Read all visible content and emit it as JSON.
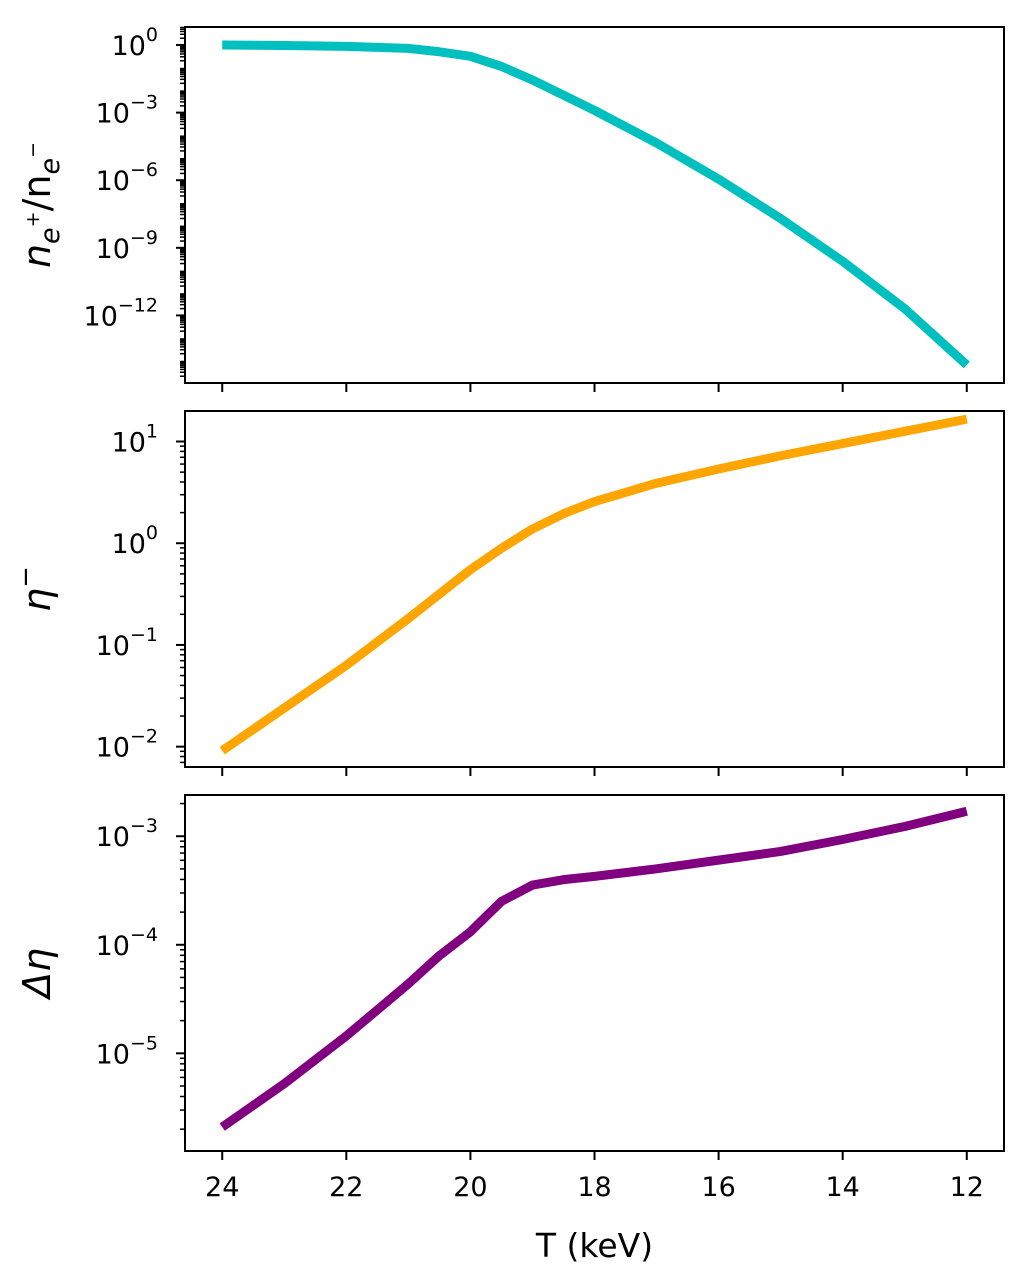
{
  "chart_data": [
    {
      "type": "line",
      "ylabel": "n_{e+}/n_{e−}",
      "yscale": "log",
      "ylim_exp": [
        -15.0,
        0.8
      ],
      "xlim": [
        24.6,
        11.4
      ],
      "x_ticks": [
        24,
        22,
        20,
        18,
        16,
        14,
        12
      ],
      "y_tick_exponents": [
        0,
        -3,
        -6,
        -9,
        -12
      ],
      "show_x_tick_labels": false,
      "line_color": "#00bfbf",
      "series": [
        {
          "x": [
            24,
            23,
            22,
            21,
            20.5,
            20,
            19.5,
            19,
            18,
            17,
            16,
            15,
            14,
            13,
            12
          ],
          "log10_y": [
            0.0,
            -0.02,
            -0.06,
            -0.15,
            -0.3,
            -0.5,
            -0.95,
            -1.55,
            -2.9,
            -4.35,
            -5.95,
            -7.7,
            -9.6,
            -11.7,
            -14.2
          ]
        }
      ]
    },
    {
      "type": "line",
      "ylabel": "η^−",
      "yscale": "log",
      "ylim_exp": [
        -2.2,
        1.3
      ],
      "xlim": [
        24.6,
        11.4
      ],
      "x_ticks": [
        24,
        22,
        20,
        18,
        16,
        14,
        12
      ],
      "y_tick_exponents": [
        1,
        0,
        -1,
        -2
      ],
      "show_x_tick_labels": false,
      "line_color": "#ffa500",
      "series": [
        {
          "x": [
            24,
            23,
            22,
            21,
            20.5,
            20,
            19.5,
            19,
            18.5,
            18,
            17,
            16,
            15,
            14,
            13,
            12
          ],
          "log10_y": [
            -2.04,
            -1.62,
            -1.2,
            -0.74,
            -0.5,
            -0.26,
            -0.05,
            0.14,
            0.29,
            0.41,
            0.59,
            0.73,
            0.86,
            0.98,
            1.1,
            1.22
          ]
        }
      ]
    },
    {
      "type": "line",
      "ylabel": "Δη",
      "yscale": "log",
      "xlabel": "T (keV)",
      "ylim_exp": [
        -5.9,
        -2.62
      ],
      "xlim": [
        24.6,
        11.4
      ],
      "x_ticks": [
        24,
        22,
        20,
        18,
        16,
        14,
        12
      ],
      "y_tick_exponents": [
        -3,
        -4,
        -5
      ],
      "show_x_tick_labels": true,
      "line_color": "#800080",
      "series": [
        {
          "x": [
            24,
            23,
            22,
            21,
            20.5,
            20,
            19.5,
            19,
            18.5,
            18,
            17,
            16,
            15,
            14,
            13,
            12
          ],
          "log10_y": [
            -5.68,
            -5.28,
            -4.84,
            -4.36,
            -4.1,
            -3.88,
            -3.6,
            -3.45,
            -3.4,
            -3.37,
            -3.3,
            -3.22,
            -3.14,
            -3.03,
            -2.91,
            -2.77
          ]
        }
      ]
    }
  ]
}
